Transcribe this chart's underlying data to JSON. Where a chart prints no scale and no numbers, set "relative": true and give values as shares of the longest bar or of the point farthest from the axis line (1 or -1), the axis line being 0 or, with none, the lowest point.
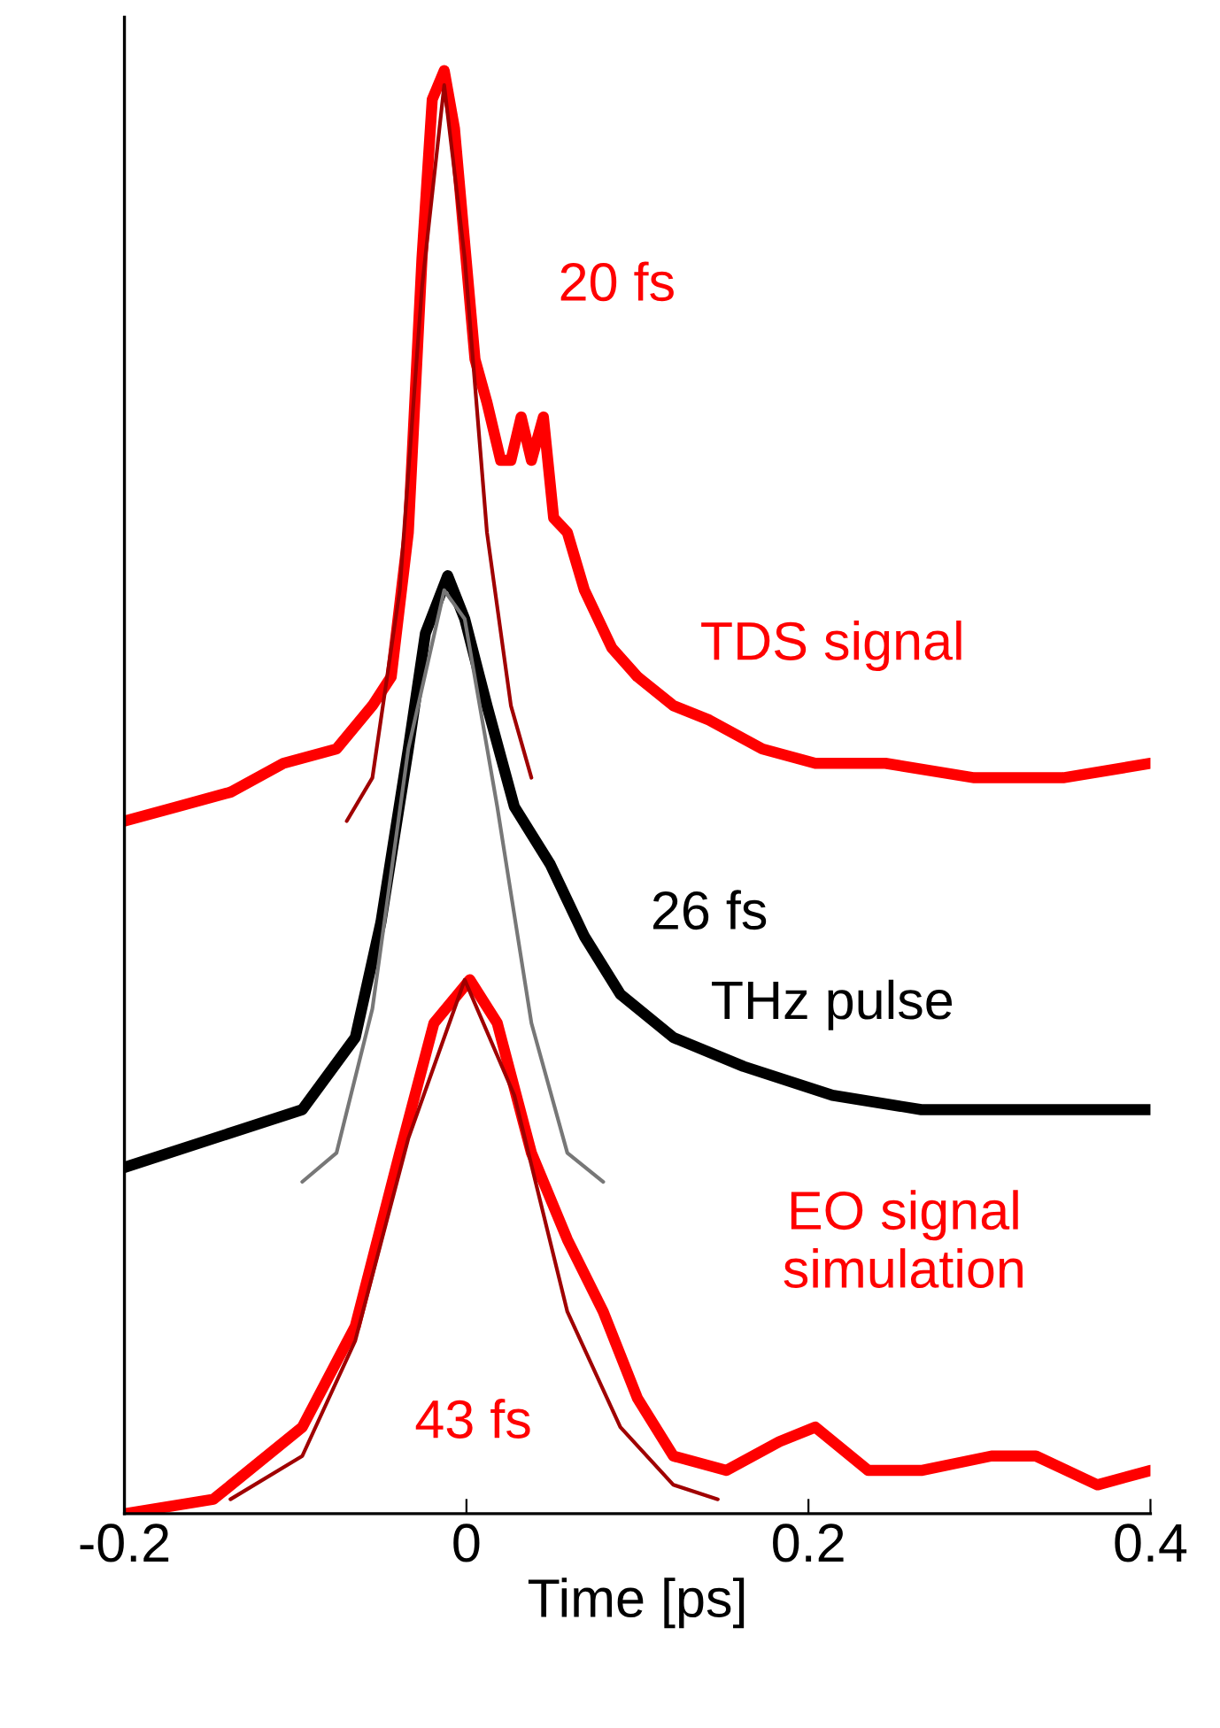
{
  "chart_data": {
    "type": "line",
    "relative": true,
    "xlabel": "Time [ps]",
    "xlim": [
      -0.2,
      0.4
    ],
    "xticks": [
      -0.2,
      0,
      0.2,
      0.4
    ],
    "grid": false,
    "series": [
      {
        "color": "#ff0000",
        "x": [
          -0.2,
          -0.169,
          -0.138,
          -0.107,
          -0.076,
          -0.055,
          -0.044,
          -0.034,
          -0.026,
          -0.02,
          -0.013,
          -0.007,
          -0.001,
          0.005,
          0.012,
          0.02,
          0.026,
          0.032,
          0.038,
          0.045,
          0.051,
          0.059,
          0.069,
          0.085,
          0.1,
          0.121,
          0.142,
          0.173,
          0.204,
          0.245,
          0.297,
          0.349,
          0.4
        ],
        "values": [
          0.48,
          0.49,
          0.5,
          0.52,
          0.53,
          0.56,
          0.58,
          0.68,
          0.87,
          0.98,
          1.0,
          0.96,
          0.88,
          0.8,
          0.77,
          0.73,
          0.73,
          0.76,
          0.73,
          0.76,
          0.69,
          0.68,
          0.64,
          0.6,
          0.58,
          0.56,
          0.55,
          0.53,
          0.52,
          0.52,
          0.51,
          0.51,
          0.52
        ]
      },
      {
        "type": "line",
        "color": "#a00000",
        "x": [
          -0.07,
          -0.055,
          -0.039,
          -0.026,
          -0.013,
          -0.001,
          0.012,
          0.026,
          0.038
        ],
        "values": [
          0.48,
          0.51,
          0.64,
          0.85,
          0.99,
          0.87,
          0.68,
          0.56,
          0.51
        ]
      },
      {
        "color": "#000000",
        "x": [
          -0.2,
          -0.148,
          -0.096,
          -0.065,
          -0.05,
          -0.034,
          -0.024,
          -0.011,
          -0.001,
          0.012,
          0.028,
          0.049,
          0.069,
          0.09,
          0.121,
          0.162,
          0.214,
          0.266,
          0.307,
          0.4
        ],
        "values": [
          0.24,
          0.26,
          0.28,
          0.33,
          0.41,
          0.53,
          0.61,
          0.65,
          0.62,
          0.56,
          0.49,
          0.45,
          0.4,
          0.36,
          0.33,
          0.31,
          0.29,
          0.28,
          0.28,
          0.28
        ]
      },
      {
        "type": "line",
        "color": "#777777",
        "x": [
          -0.096,
          -0.076,
          -0.055,
          -0.034,
          -0.013,
          -0.001,
          0.018,
          0.038,
          0.059,
          0.08
        ],
        "values": [
          0.23,
          0.25,
          0.35,
          0.53,
          0.64,
          0.62,
          0.49,
          0.34,
          0.25,
          0.23
        ]
      },
      {
        "color": "#ff0000",
        "x": [
          -0.2,
          -0.148,
          -0.096,
          -0.065,
          -0.039,
          -0.019,
          0.002,
          0.018,
          0.038,
          0.059,
          0.08,
          0.1,
          0.121,
          0.152,
          0.183,
          0.204,
          0.235,
          0.266,
          0.307,
          0.333,
          0.369,
          0.4
        ],
        "values": [
          0.0,
          0.01,
          0.06,
          0.13,
          0.25,
          0.34,
          0.37,
          0.34,
          0.25,
          0.19,
          0.14,
          0.08,
          0.04,
          0.03,
          0.05,
          0.06,
          0.03,
          0.03,
          0.04,
          0.04,
          0.02,
          0.03
        ]
      },
      {
        "type": "line",
        "color": "#a00000",
        "x": [
          -0.138,
          -0.096,
          -0.065,
          -0.034,
          -0.001,
          0.028,
          0.059,
          0.09,
          0.121,
          0.147
        ],
        "values": [
          0.01,
          0.04,
          0.12,
          0.26,
          0.37,
          0.29,
          0.14,
          0.06,
          0.02,
          0.01
        ]
      }
    ],
    "annotations": [
      "20 fs",
      "TDS signal",
      "26 fs",
      "THz pulse",
      "EO signal\nsimulation",
      "43 fs"
    ]
  }
}
